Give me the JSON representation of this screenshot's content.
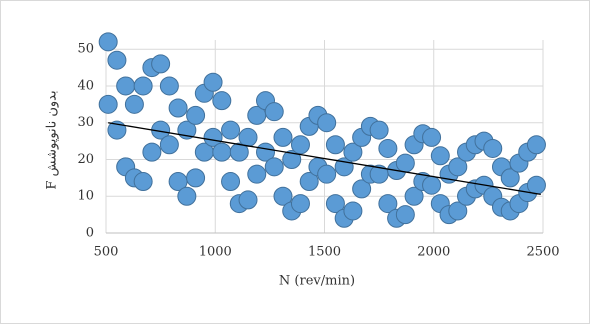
{
  "chart_data": {
    "type": "scatter",
    "x_label": "N (rev/min)",
    "y_label": "F بدون نانوپوشش",
    "x": [
      510,
      510,
      550,
      550,
      590,
      590,
      630,
      630,
      670,
      670,
      710,
      710,
      750,
      750,
      790,
      790,
      830,
      830,
      870,
      870,
      910,
      910,
      950,
      950,
      990,
      990,
      1030,
      1030,
      1070,
      1070,
      1110,
      1110,
      1150,
      1150,
      1190,
      1190,
      1230,
      1230,
      1270,
      1270,
      1310,
      1310,
      1350,
      1350,
      1390,
      1390,
      1430,
      1430,
      1470,
      1470,
      1510,
      1510,
      1550,
      1550,
      1590,
      1590,
      1630,
      1630,
      1670,
      1670,
      1710,
      1710,
      1750,
      1750,
      1790,
      1790,
      1830,
      1830,
      1870,
      1870,
      1910,
      1910,
      1950,
      1950,
      1990,
      1990,
      2030,
      2030,
      2070,
      2070,
      2110,
      2110,
      2150,
      2150,
      2190,
      2190,
      2230,
      2230,
      2270,
      2270,
      2310,
      2310,
      2350,
      2350,
      2390,
      2390,
      2430,
      2430,
      2470,
      2470
    ],
    "values": [
      52,
      35,
      47,
      28,
      40,
      18,
      35,
      15,
      40,
      14,
      45,
      22,
      46,
      28,
      40,
      24,
      34,
      14,
      28,
      10,
      32,
      15,
      38,
      22,
      41,
      26,
      36,
      22,
      28,
      14,
      22,
      8,
      26,
      9,
      32,
      16,
      36,
      22,
      33,
      18,
      26,
      10,
      20,
      6,
      24,
      8,
      29,
      14,
      32,
      18,
      30,
      16,
      24,
      8,
      18,
      4,
      22,
      6,
      26,
      12,
      29,
      16,
      28,
      16,
      23,
      8,
      17,
      4,
      19,
      5,
      24,
      10,
      27,
      14,
      26,
      13,
      21,
      8,
      16,
      5,
      18,
      6,
      22,
      10,
      24,
      12,
      25,
      13,
      23,
      10,
      18,
      7,
      15,
      6,
      19,
      8,
      22,
      11,
      24,
      13
    ],
    "color": "#5b9bd5",
    "trendline": {
      "x": [
        510,
        2490
      ],
      "y": [
        30,
        10.5
      ],
      "color": "#000000"
    },
    "xlim": [
      500,
      2500
    ],
    "xticks": [
      500,
      1000,
      1500,
      2000,
      2500
    ],
    "ylim": [
      0,
      52.5
    ],
    "yticks": [
      0,
      10,
      20,
      30,
      40,
      50
    ],
    "grid": true
  }
}
